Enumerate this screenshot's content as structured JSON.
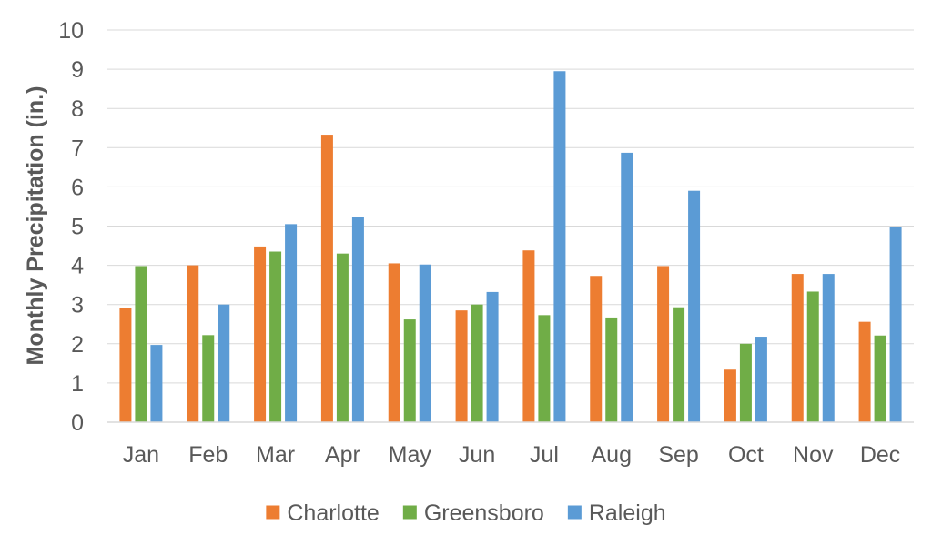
{
  "chart_data": {
    "type": "bar",
    "title": "",
    "xlabel": "",
    "ylabel": "Monthly Precipitation (in.)",
    "ylim": [
      0,
      10
    ],
    "yticks": [
      0,
      1,
      2,
      3,
      4,
      5,
      6,
      7,
      8,
      9,
      10
    ],
    "grid": true,
    "legend_position": "bottom",
    "categories": [
      "Jan",
      "Feb",
      "Mar",
      "Apr",
      "May",
      "Jun",
      "Jul",
      "Aug",
      "Sep",
      "Oct",
      "Nov",
      "Dec"
    ],
    "series": [
      {
        "name": "Charlotte",
        "color": "#ed7d31",
        "values": [
          2.92,
          4.0,
          4.48,
          7.33,
          4.05,
          2.85,
          4.38,
          3.73,
          3.98,
          1.34,
          3.78,
          2.56
        ]
      },
      {
        "name": "Greensboro",
        "color": "#70ad47",
        "values": [
          3.98,
          2.22,
          4.35,
          4.3,
          2.62,
          3.0,
          2.73,
          2.67,
          2.93,
          2.0,
          3.33,
          2.21
        ]
      },
      {
        "name": "Raleigh",
        "color": "#5b9bd5",
        "values": [
          1.97,
          3.0,
          5.05,
          5.23,
          4.02,
          3.32,
          8.95,
          6.87,
          5.9,
          2.18,
          3.78,
          4.97
        ]
      }
    ]
  }
}
